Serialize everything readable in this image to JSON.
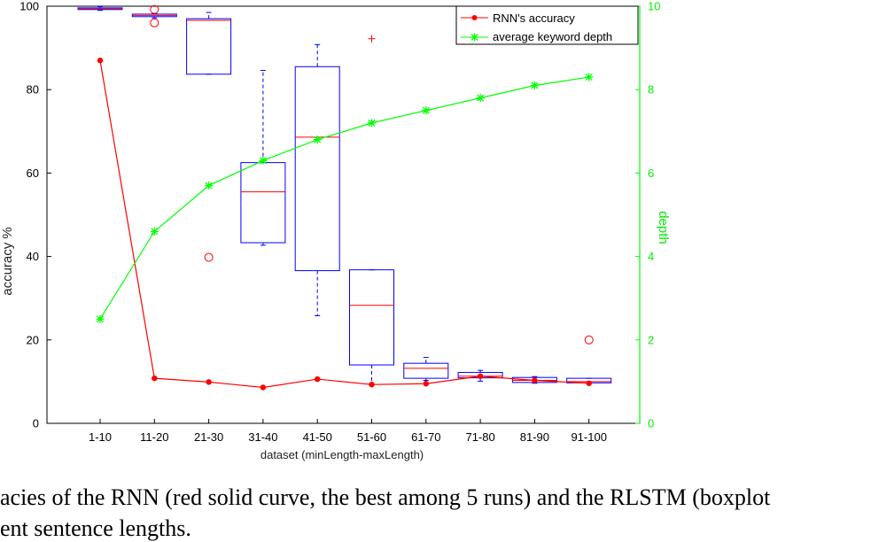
{
  "chart_data": {
    "type": "boxplot-line",
    "xlabel": "dataset (minLength-maxLength)",
    "ylabel_left": "accuracy  %",
    "ylabel_right": "depth",
    "ylim_left": [
      0,
      100
    ],
    "ylim_right": [
      0,
      10
    ],
    "yticks_left": [
      0,
      20,
      40,
      60,
      80,
      100
    ],
    "yticks_right": [
      0,
      2,
      4,
      6,
      8,
      10
    ],
    "categories": [
      "1-10",
      "11-20",
      "21-30",
      "31-40",
      "41-50",
      "51-60",
      "61-70",
      "71-80",
      "81-90",
      "91-100"
    ],
    "legend_position": "top-right",
    "series": [
      {
        "name": "RNN's accuracy",
        "axis": "left",
        "color": "#ff0000",
        "marker": "dot",
        "values": [
          87,
          10.8,
          9.9,
          8.6,
          10.6,
          9.3,
          9.5,
          11.3,
          10.3,
          9.6
        ]
      },
      {
        "name": "average keyword depth",
        "axis": "right",
        "color": "#00ff00",
        "marker": "star",
        "values": [
          2.5,
          4.6,
          5.7,
          6.3,
          6.8,
          7.2,
          7.5,
          7.8,
          8.1,
          8.3
        ]
      }
    ],
    "boxplots": {
      "axis": "left",
      "box_color": "#0000ff",
      "median_color": "#ff0000",
      "data": [
        {
          "q1": 99.2,
          "median": 99.4,
          "q3": 99.6,
          "wlo": 99,
          "whi": 99.9,
          "outliers": []
        },
        {
          "q1": 97.5,
          "median": 97.8,
          "q3": 98.1,
          "wlo": 97.2,
          "whi": 98.3,
          "outliers": [
            99.2,
            96
          ]
        },
        {
          "q1": 83.7,
          "median": 96.6,
          "q3": 97,
          "wlo": 83.7,
          "whi": 98.5,
          "outliers": [
            39.8
          ]
        },
        {
          "q1": 43.3,
          "median": 55.5,
          "q3": 62.5,
          "wlo": 42.7,
          "whi": 84.6,
          "outliers": []
        },
        {
          "q1": 36.6,
          "median": 68.6,
          "q3": 85.5,
          "wlo": 25.8,
          "whi": 90.8,
          "outliers": []
        },
        {
          "q1": 14,
          "median": 28.3,
          "q3": 36.8,
          "wlo": 9.5,
          "whi": 36.8,
          "outliers": [
            92.2
          ]
        },
        {
          "q1": 10.8,
          "median": 13.2,
          "q3": 14.4,
          "wlo": 10.3,
          "whi": 15.8,
          "outliers": []
        },
        {
          "q1": 10.9,
          "median": 11.3,
          "q3": 12.2,
          "wlo": 10.1,
          "whi": 12.7,
          "outliers": []
        },
        {
          "q1": 9.8,
          "median": 10.3,
          "q3": 11,
          "wlo": 9.6,
          "whi": 11.2,
          "outliers": []
        },
        {
          "q1": 9.7,
          "median": 10,
          "q3": 10.8,
          "wlo": 9.6,
          "whi": 10.8,
          "outliers": [
            20
          ]
        }
      ]
    }
  },
  "caption": {
    "line1": "acies of the RNN (red solid curve, the best among 5 runs) and the RLSTM (boxplot",
    "line2": "ent sentence lengths."
  }
}
